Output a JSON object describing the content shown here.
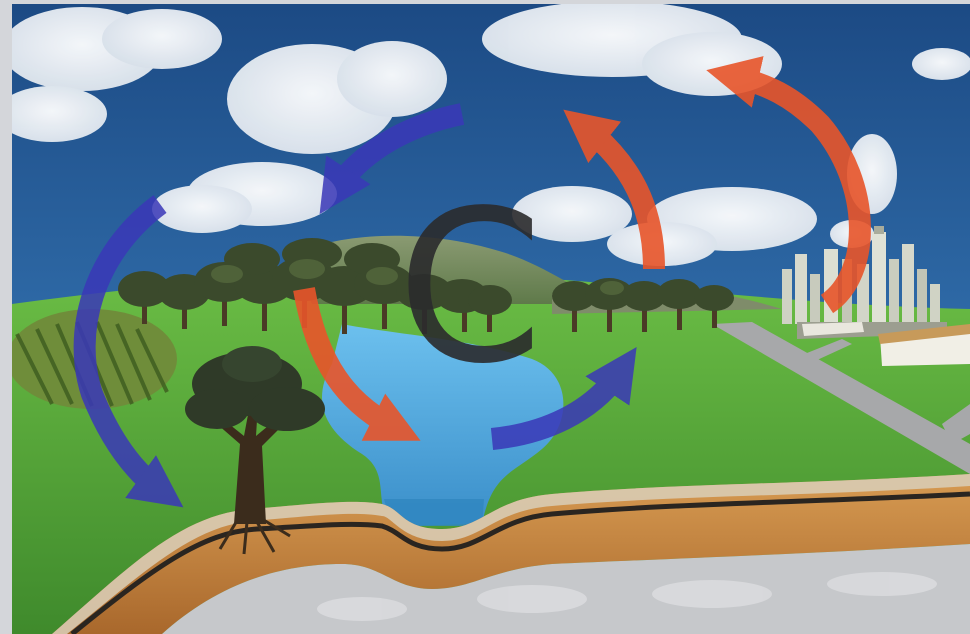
{
  "diagram": {
    "center_symbol": "C",
    "colors": {
      "sky": "#1f4f88",
      "grass": "#5aa83a",
      "water": "#59ade0",
      "soil": "#c78a45",
      "bedrock": "#c9cacc",
      "uptake_arrow": "#3b3bb4",
      "release_arrow": "#e2552a"
    },
    "elements": {
      "icons": [
        "cloud-icon",
        "forest-icon",
        "tree-icon",
        "hill-icon",
        "lake-icon",
        "city-icon",
        "road-icon",
        "farm-field-icon"
      ],
      "blue_arrows": [
        "arrow-air-to-forest",
        "arrow-air-to-soil",
        "arrow-water-to-air"
      ],
      "orange_arrows": [
        "arrow-forest-to-water",
        "arrow-lake-to-air",
        "arrow-city-to-air"
      ]
    }
  }
}
